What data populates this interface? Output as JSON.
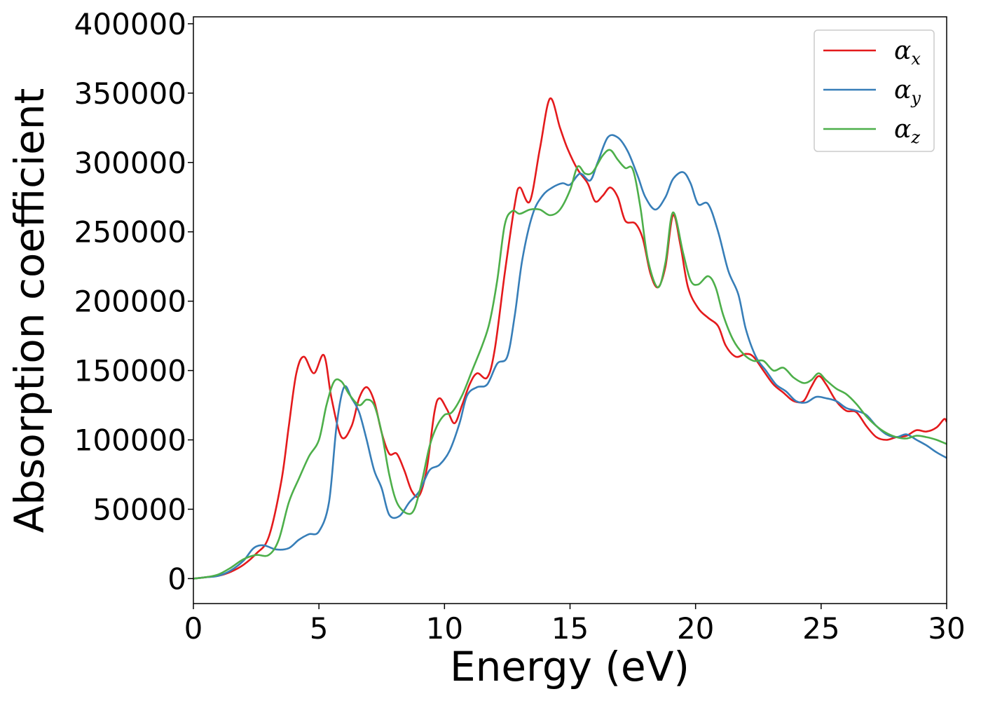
{
  "chart_data": {
    "type": "line",
    "title": "",
    "xlabel": "Energy (eV)",
    "ylabel": "Absorption coefficient",
    "xlim": [
      0,
      30
    ],
    "ylim": [
      -18000,
      405000
    ],
    "xticks": [
      0,
      5,
      10,
      15,
      20,
      25,
      30
    ],
    "yticks": [
      0,
      50000,
      100000,
      150000,
      200000,
      250000,
      300000,
      350000,
      400000
    ],
    "grid": false,
    "legend_position": "top-right",
    "series": [
      {
        "name": "α",
        "sub": "x",
        "color": "#e41a1c",
        "points": [
          [
            0,
            0
          ],
          [
            0.5,
            1000
          ],
          [
            1,
            2000
          ],
          [
            1.5,
            5000
          ],
          [
            2,
            10000
          ],
          [
            2.5,
            18000
          ],
          [
            3,
            30000
          ],
          [
            3.5,
            70000
          ],
          [
            3.8,
            110000
          ],
          [
            4.1,
            148000
          ],
          [
            4.4,
            160000
          ],
          [
            4.8,
            148000
          ],
          [
            5.2,
            161000
          ],
          [
            5.5,
            130000
          ],
          [
            5.9,
            102000
          ],
          [
            6.3,
            110000
          ],
          [
            6.6,
            130000
          ],
          [
            6.9,
            138000
          ],
          [
            7.2,
            128000
          ],
          [
            7.5,
            105000
          ],
          [
            7.8,
            90000
          ],
          [
            8.1,
            90000
          ],
          [
            8.4,
            78000
          ],
          [
            8.7,
            63000
          ],
          [
            9.0,
            60000
          ],
          [
            9.3,
            80000
          ],
          [
            9.6,
            120000
          ],
          [
            9.8,
            130000
          ],
          [
            10.1,
            122000
          ],
          [
            10.4,
            112000
          ],
          [
            10.7,
            125000
          ],
          [
            11.0,
            140000
          ],
          [
            11.3,
            148000
          ],
          [
            11.7,
            145000
          ],
          [
            12.0,
            165000
          ],
          [
            12.4,
            220000
          ],
          [
            12.8,
            270000
          ],
          [
            13.0,
            282000
          ],
          [
            13.4,
            272000
          ],
          [
            13.8,
            310000
          ],
          [
            14.2,
            346000
          ],
          [
            14.6,
            325000
          ],
          [
            14.9,
            310000
          ],
          [
            15.3,
            295000
          ],
          [
            15.7,
            285000
          ],
          [
            16.0,
            272000
          ],
          [
            16.3,
            276000
          ],
          [
            16.6,
            282000
          ],
          [
            16.9,
            275000
          ],
          [
            17.2,
            258000
          ],
          [
            17.6,
            256000
          ],
          [
            17.9,
            245000
          ],
          [
            18.2,
            220000
          ],
          [
            18.5,
            210000
          ],
          [
            18.8,
            225000
          ],
          [
            19.1,
            262000
          ],
          [
            19.4,
            240000
          ],
          [
            19.7,
            210000
          ],
          [
            20.1,
            195000
          ],
          [
            20.5,
            188000
          ],
          [
            20.9,
            182000
          ],
          [
            21.2,
            168000
          ],
          [
            21.6,
            160000
          ],
          [
            22.0,
            162000
          ],
          [
            22.3,
            160000
          ],
          [
            22.7,
            150000
          ],
          [
            23.1,
            140000
          ],
          [
            23.5,
            134000
          ],
          [
            23.9,
            128000
          ],
          [
            24.3,
            128000
          ],
          [
            24.6,
            138000
          ],
          [
            24.9,
            146000
          ],
          [
            25.2,
            140000
          ],
          [
            25.6,
            128000
          ],
          [
            26.0,
            121000
          ],
          [
            26.4,
            120000
          ],
          [
            26.8,
            110000
          ],
          [
            27.2,
            102000
          ],
          [
            27.6,
            100000
          ],
          [
            28.0,
            102000
          ],
          [
            28.4,
            103000
          ],
          [
            28.8,
            107000
          ],
          [
            29.2,
            106000
          ],
          [
            29.6,
            109000
          ],
          [
            29.9,
            115000
          ],
          [
            30,
            113000
          ]
        ]
      },
      {
        "name": "α",
        "sub": "y",
        "color": "#377eb8",
        "points": [
          [
            0,
            0
          ],
          [
            0.5,
            1000
          ],
          [
            1,
            2000
          ],
          [
            1.5,
            6000
          ],
          [
            2,
            13000
          ],
          [
            2.4,
            22000
          ],
          [
            2.8,
            24000
          ],
          [
            3.3,
            21000
          ],
          [
            3.8,
            22000
          ],
          [
            4.2,
            28000
          ],
          [
            4.6,
            32000
          ],
          [
            5.0,
            34000
          ],
          [
            5.4,
            55000
          ],
          [
            5.7,
            110000
          ],
          [
            6.0,
            138000
          ],
          [
            6.3,
            130000
          ],
          [
            6.6,
            120000
          ],
          [
            6.9,
            100000
          ],
          [
            7.2,
            78000
          ],
          [
            7.5,
            65000
          ],
          [
            7.8,
            46000
          ],
          [
            8.2,
            45000
          ],
          [
            8.6,
            55000
          ],
          [
            9.0,
            63000
          ],
          [
            9.4,
            78000
          ],
          [
            9.8,
            82000
          ],
          [
            10.2,
            92000
          ],
          [
            10.6,
            112000
          ],
          [
            10.9,
            132000
          ],
          [
            11.3,
            138000
          ],
          [
            11.7,
            140000
          ],
          [
            12.1,
            155000
          ],
          [
            12.5,
            160000
          ],
          [
            12.8,
            190000
          ],
          [
            13.1,
            230000
          ],
          [
            13.5,
            262000
          ],
          [
            13.9,
            276000
          ],
          [
            14.3,
            282000
          ],
          [
            14.7,
            285000
          ],
          [
            15.0,
            284000
          ],
          [
            15.4,
            292000
          ],
          [
            15.8,
            287000
          ],
          [
            16.1,
            300000
          ],
          [
            16.5,
            318000
          ],
          [
            16.9,
            318000
          ],
          [
            17.3,
            308000
          ],
          [
            17.7,
            290000
          ],
          [
            18.0,
            275000
          ],
          [
            18.4,
            266000
          ],
          [
            18.8,
            275000
          ],
          [
            19.1,
            288000
          ],
          [
            19.5,
            293000
          ],
          [
            19.8,
            285000
          ],
          [
            20.1,
            270000
          ],
          [
            20.5,
            270000
          ],
          [
            20.9,
            250000
          ],
          [
            21.3,
            222000
          ],
          [
            21.7,
            205000
          ],
          [
            22.0,
            180000
          ],
          [
            22.4,
            160000
          ],
          [
            22.8,
            150000
          ],
          [
            23.2,
            140000
          ],
          [
            23.6,
            135000
          ],
          [
            24.0,
            128000
          ],
          [
            24.4,
            127000
          ],
          [
            24.8,
            131000
          ],
          [
            25.2,
            130000
          ],
          [
            25.6,
            128000
          ],
          [
            26.0,
            123000
          ],
          [
            26.4,
            121000
          ],
          [
            26.8,
            118000
          ],
          [
            27.2,
            110000
          ],
          [
            27.6,
            104000
          ],
          [
            28.0,
            102000
          ],
          [
            28.4,
            104000
          ],
          [
            28.8,
            100000
          ],
          [
            29.2,
            96000
          ],
          [
            29.6,
            91000
          ],
          [
            30,
            87000
          ]
        ]
      },
      {
        "name": "α",
        "sub": "z",
        "color": "#4daf4a",
        "points": [
          [
            0,
            0
          ],
          [
            0.5,
            1000
          ],
          [
            1,
            3000
          ],
          [
            1.5,
            8000
          ],
          [
            2,
            14000
          ],
          [
            2.5,
            17000
          ],
          [
            3.0,
            17000
          ],
          [
            3.4,
            28000
          ],
          [
            3.8,
            55000
          ],
          [
            4.2,
            72000
          ],
          [
            4.6,
            88000
          ],
          [
            5.0,
            100000
          ],
          [
            5.3,
            125000
          ],
          [
            5.6,
            142000
          ],
          [
            5.9,
            142000
          ],
          [
            6.2,
            133000
          ],
          [
            6.6,
            125000
          ],
          [
            6.9,
            129000
          ],
          [
            7.2,
            125000
          ],
          [
            7.5,
            105000
          ],
          [
            7.8,
            75000
          ],
          [
            8.1,
            55000
          ],
          [
            8.5,
            47000
          ],
          [
            8.8,
            50000
          ],
          [
            9.1,
            70000
          ],
          [
            9.4,
            95000
          ],
          [
            9.7,
            110000
          ],
          [
            10.0,
            118000
          ],
          [
            10.3,
            120000
          ],
          [
            10.7,
            132000
          ],
          [
            11.1,
            150000
          ],
          [
            11.5,
            168000
          ],
          [
            11.8,
            185000
          ],
          [
            12.1,
            215000
          ],
          [
            12.4,
            255000
          ],
          [
            12.7,
            265000
          ],
          [
            13.0,
            263000
          ],
          [
            13.4,
            266000
          ],
          [
            13.8,
            266000
          ],
          [
            14.2,
            262000
          ],
          [
            14.6,
            266000
          ],
          [
            15.0,
            280000
          ],
          [
            15.3,
            297000
          ],
          [
            15.6,
            292000
          ],
          [
            15.9,
            293000
          ],
          [
            16.3,
            305000
          ],
          [
            16.6,
            309000
          ],
          [
            16.9,
            302000
          ],
          [
            17.2,
            296000
          ],
          [
            17.5,
            295000
          ],
          [
            17.8,
            268000
          ],
          [
            18.1,
            230000
          ],
          [
            18.5,
            210000
          ],
          [
            18.8,
            228000
          ],
          [
            19.1,
            264000
          ],
          [
            19.5,
            235000
          ],
          [
            19.8,
            215000
          ],
          [
            20.1,
            212000
          ],
          [
            20.5,
            218000
          ],
          [
            20.8,
            210000
          ],
          [
            21.1,
            190000
          ],
          [
            21.5,
            172000
          ],
          [
            21.9,
            162000
          ],
          [
            22.3,
            157000
          ],
          [
            22.7,
            157000
          ],
          [
            23.1,
            150000
          ],
          [
            23.5,
            152000
          ],
          [
            23.9,
            145000
          ],
          [
            24.3,
            141000
          ],
          [
            24.6,
            143000
          ],
          [
            24.9,
            148000
          ],
          [
            25.2,
            143000
          ],
          [
            25.6,
            137000
          ],
          [
            26.0,
            133000
          ],
          [
            26.4,
            126000
          ],
          [
            26.8,
            117000
          ],
          [
            27.2,
            110000
          ],
          [
            27.6,
            105000
          ],
          [
            28.0,
            102000
          ],
          [
            28.4,
            101000
          ],
          [
            28.8,
            103000
          ],
          [
            29.2,
            102000
          ],
          [
            29.6,
            100000
          ],
          [
            30,
            97000
          ]
        ]
      }
    ]
  }
}
